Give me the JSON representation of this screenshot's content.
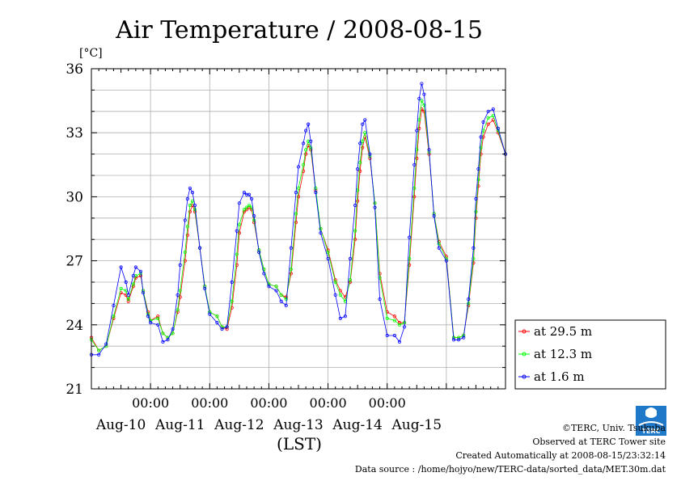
{
  "chart_data": {
    "type": "line",
    "title": "Air Temperature / 2008-08-15",
    "ylabel": "[°C]",
    "xlabel": "(LST)",
    "ylim": [
      21,
      36
    ],
    "yticks": [
      21,
      24,
      27,
      30,
      33,
      36
    ],
    "xlim": [
      -24,
      144
    ],
    "x_units": "hours since Aug-10 00:00 (LST)",
    "x_tick_labels": [
      "00:00",
      "00:00",
      "00:00",
      "00:00",
      "00:00"
    ],
    "date_labels": [
      "Aug-10",
      "Aug-11",
      "Aug-12",
      "Aug-13",
      "Aug-14",
      "Aug-15"
    ],
    "grid": true,
    "legend_position": "bottom-right outside plot",
    "series": [
      {
        "name": "at 29.5 m",
        "color": "#ff0000",
        "x": [
          -24,
          -21,
          -18,
          -15,
          -12,
          -10,
          -9,
          -7,
          -6,
          -4,
          -3,
          -1,
          0,
          3,
          5,
          7,
          9,
          11,
          12,
          14,
          15,
          16,
          17,
          18,
          20,
          22,
          24,
          27,
          29,
          31,
          33,
          35,
          36,
          38,
          39,
          40,
          41,
          42,
          44,
          46,
          48,
          51,
          53,
          55,
          57,
          59,
          60,
          62,
          63,
          64,
          65,
          67,
          69,
          72,
          75,
          77,
          79,
          81,
          83,
          84,
          85,
          86,
          87,
          89,
          91,
          93,
          96,
          99,
          101,
          103,
          105,
          107,
          108,
          109,
          110,
          111,
          113,
          115,
          117,
          120,
          123,
          125,
          127,
          129,
          131,
          132,
          133,
          134,
          135,
          137,
          139,
          141,
          144
        ],
        "y": [
          23.4,
          22.8,
          23.0,
          24.3,
          25.5,
          25.4,
          25.1,
          25.8,
          26.2,
          26.3,
          25.6,
          24.6,
          24.2,
          24.4,
          23.6,
          23.4,
          23.6,
          24.6,
          25.3,
          27.0,
          28.2,
          29.3,
          29.6,
          29.3,
          27.6,
          25.8,
          24.6,
          24.4,
          23.9,
          23.8,
          24.8,
          26.8,
          28.3,
          29.3,
          29.4,
          29.5,
          29.4,
          28.8,
          27.5,
          26.6,
          25.9,
          25.8,
          25.4,
          25.3,
          26.4,
          28.8,
          30.0,
          31.2,
          32.0,
          32.4,
          32.2,
          30.3,
          28.5,
          27.5,
          26.1,
          25.6,
          25.3,
          26.0,
          28.0,
          29.8,
          31.2,
          32.3,
          32.8,
          31.8,
          29.7,
          26.4,
          24.6,
          24.4,
          24.1,
          24.1,
          26.8,
          30.0,
          31.8,
          33.2,
          34.1,
          34.0,
          32.0,
          29.2,
          27.9,
          27.2,
          23.4,
          23.4,
          23.5,
          24.9,
          26.9,
          29.0,
          30.5,
          32.0,
          32.8,
          33.4,
          33.6,
          33.0,
          32.0
        ]
      },
      {
        "name": "at 12.3 m",
        "color": "#00ff00",
        "x": [
          -24,
          -21,
          -18,
          -15,
          -12,
          -10,
          -9,
          -7,
          -6,
          -4,
          -3,
          -1,
          0,
          3,
          5,
          7,
          9,
          11,
          12,
          14,
          15,
          16,
          17,
          18,
          20,
          22,
          24,
          27,
          29,
          31,
          33,
          35,
          36,
          38,
          39,
          40,
          41,
          42,
          44,
          46,
          48,
          51,
          53,
          55,
          57,
          59,
          60,
          62,
          63,
          64,
          65,
          67,
          69,
          72,
          75,
          77,
          79,
          81,
          83,
          84,
          85,
          86,
          87,
          89,
          91,
          93,
          96,
          99,
          101,
          103,
          105,
          107,
          108,
          109,
          110,
          111,
          113,
          115,
          117,
          120,
          123,
          125,
          127,
          129,
          131,
          132,
          133,
          134,
          135,
          137,
          139,
          141,
          144
        ],
        "y": [
          23.3,
          22.8,
          23.0,
          24.4,
          25.7,
          25.6,
          25.2,
          25.9,
          26.3,
          26.4,
          25.6,
          24.5,
          24.2,
          24.3,
          23.6,
          23.4,
          23.6,
          24.7,
          25.6,
          27.4,
          28.6,
          29.6,
          29.8,
          29.4,
          27.6,
          25.8,
          24.6,
          24.4,
          23.9,
          23.9,
          25.1,
          27.3,
          28.7,
          29.4,
          29.5,
          29.6,
          29.5,
          28.9,
          27.5,
          26.6,
          25.9,
          25.8,
          25.4,
          25.2,
          26.6,
          29.2,
          30.4,
          31.5,
          32.2,
          32.6,
          32.3,
          30.4,
          28.5,
          27.4,
          26.0,
          25.4,
          25.1,
          26.1,
          28.4,
          30.3,
          31.6,
          32.6,
          33.0,
          31.9,
          29.7,
          26.2,
          24.3,
          24.2,
          24.0,
          24.1,
          27.1,
          30.4,
          32.2,
          33.6,
          34.5,
          34.3,
          32.1,
          29.2,
          27.8,
          27.1,
          23.4,
          23.4,
          23.5,
          25.0,
          27.1,
          29.3,
          30.8,
          32.3,
          33.1,
          33.7,
          33.8,
          33.1,
          32.0
        ]
      },
      {
        "name": "at 1.6 m",
        "color": "#0000ff",
        "x": [
          -24,
          -21,
          -18,
          -15,
          -12,
          -10,
          -9,
          -7,
          -6,
          -4,
          -3,
          -1,
          0,
          3,
          5,
          7,
          9,
          11,
          12,
          14,
          15,
          16,
          17,
          18,
          20,
          22,
          24,
          27,
          29,
          31,
          33,
          35,
          36,
          38,
          39,
          40,
          41,
          42,
          44,
          46,
          48,
          51,
          53,
          55,
          57,
          59,
          60,
          62,
          63,
          64,
          65,
          67,
          69,
          72,
          75,
          77,
          79,
          81,
          83,
          84,
          85,
          86,
          87,
          89,
          91,
          93,
          96,
          99,
          101,
          103,
          105,
          107,
          108,
          109,
          110,
          111,
          113,
          115,
          117,
          120,
          123,
          125,
          127,
          129,
          131,
          132,
          133,
          134,
          135,
          137,
          139,
          141,
          144
        ],
        "y": [
          22.6,
          22.6,
          23.1,
          24.9,
          26.7,
          26.0,
          25.4,
          26.3,
          26.7,
          26.5,
          25.5,
          24.4,
          24.1,
          24.0,
          23.2,
          23.3,
          23.8,
          25.4,
          26.8,
          28.9,
          29.9,
          30.4,
          30.2,
          29.6,
          27.6,
          25.7,
          24.5,
          24.1,
          23.8,
          23.9,
          26.0,
          28.4,
          29.7,
          30.2,
          30.1,
          30.1,
          29.9,
          29.1,
          27.4,
          26.4,
          25.8,
          25.6,
          25.1,
          24.9,
          27.6,
          30.2,
          31.4,
          32.5,
          33.1,
          33.4,
          32.6,
          30.2,
          28.3,
          27.1,
          25.4,
          24.3,
          24.4,
          27.1,
          29.6,
          31.3,
          32.5,
          33.4,
          33.6,
          32.0,
          29.5,
          25.2,
          23.5,
          23.5,
          23.2,
          23.9,
          28.1,
          31.5,
          33.1,
          34.6,
          35.3,
          34.8,
          32.2,
          29.1,
          27.6,
          27.0,
          23.3,
          23.3,
          23.4,
          25.2,
          27.6,
          29.9,
          31.3,
          32.8,
          33.5,
          34.0,
          34.1,
          33.2,
          32.0
        ]
      }
    ]
  },
  "credits": {
    "copyright": "©TERC, Univ. Tsukuba",
    "observed": "Observed at TERC Tower site",
    "created": "Created Automatically at 2008-08-15/23:32:14",
    "source": "Data source : /home/hojyo/new/TERC-data/sorted_data/MET.30m.dat",
    "logo_text": "TERC"
  }
}
